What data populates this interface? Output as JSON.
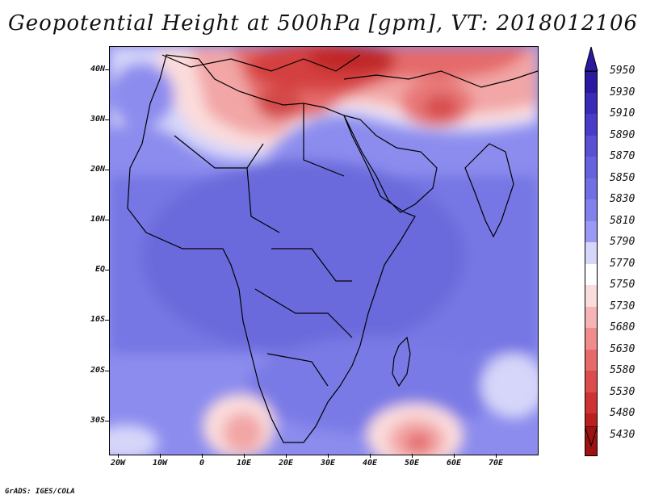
{
  "title": "Geopotential Height at 500hPa [gpm], VT: 2018012106",
  "footer": "GrADS: IGES/COLA",
  "map": {
    "variable": "Geopotential Height",
    "level": "500hPa",
    "units": "gpm",
    "valid_time": "2018012106",
    "lat_labels": [
      "40N",
      "30N",
      "20N",
      "10N",
      "EQ",
      "10S",
      "20S",
      "30S"
    ],
    "lon_labels": [
      "20W",
      "10W",
      "0",
      "10E",
      "20E",
      "30E",
      "40E",
      "50E",
      "60E",
      "70E"
    ]
  },
  "colorbar": {
    "labels": [
      "5950",
      "5930",
      "5910",
      "5890",
      "5870",
      "5850",
      "5830",
      "5810",
      "5790",
      "5770",
      "5750",
      "5730",
      "5680",
      "5630",
      "5580",
      "5530",
      "5480",
      "5430"
    ],
    "colors": [
      "#2a1aa0",
      "#3a2ab8",
      "#4a3cc8",
      "#5a50d4",
      "#6462dc",
      "#7070e2",
      "#8282ec",
      "#9a9af4",
      "#d6d6fa",
      "#ffffff",
      "#fbdcdc",
      "#f6b4b4",
      "#f08c8c",
      "#e66a6a",
      "#dd4c4c",
      "#cf3232",
      "#ba2020",
      "#9e1212"
    ]
  }
}
